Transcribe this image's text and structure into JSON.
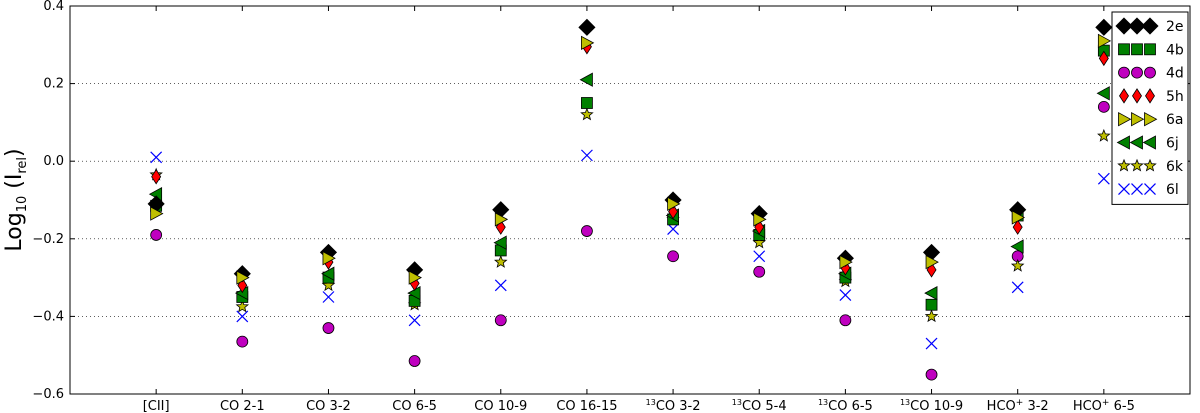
{
  "chart_data": {
    "type": "scatter",
    "categories": [
      "[CII]",
      "CO 2-1",
      "CO 3-2",
      "CO 6-5",
      "CO 10-9",
      "CO 16-15",
      "13CO 3-2",
      "13CO 5-4",
      "13CO 6-5",
      "13CO 10-9",
      "HCO+ 3-2",
      "HCO+ 6-5"
    ],
    "category_labels": [
      {
        "sup": "",
        "main": "[CII]",
        "suffix": ""
      },
      {
        "sup": "",
        "main": "CO 2-1",
        "suffix": ""
      },
      {
        "sup": "",
        "main": "CO 3-2",
        "suffix": ""
      },
      {
        "sup": "",
        "main": "CO 6-5",
        "suffix": ""
      },
      {
        "sup": "",
        "main": "CO 10-9",
        "suffix": ""
      },
      {
        "sup": "",
        "main": "CO 16-15",
        "suffix": ""
      },
      {
        "sup": "13",
        "main": "CO 3-2",
        "suffix": ""
      },
      {
        "sup": "13",
        "main": "CO 5-4",
        "suffix": ""
      },
      {
        "sup": "13",
        "main": "CO 6-5",
        "suffix": ""
      },
      {
        "sup": "13",
        "main": "CO 10-9",
        "suffix": ""
      },
      {
        "sup": "",
        "main": "HCO",
        "plus": "+",
        "suffix": " 3-2"
      },
      {
        "sup": "",
        "main": "HCO",
        "plus": "+",
        "suffix": " 6-5"
      }
    ],
    "ylabel": "Log",
    "ylabel_sub1": "10",
    "ylabel_paren_open": " (I",
    "ylabel_sub2": "rel",
    "ylabel_paren_close": ")",
    "ylim": [
      -0.6,
      0.4
    ],
    "yticks": [
      -0.6,
      -0.4,
      -0.2,
      0.0,
      0.2,
      0.4
    ],
    "ytick_labels": [
      "−0.6",
      "−0.4",
      "−0.2",
      "0.0",
      "0.2",
      "0.4"
    ],
    "grid": "horizontal dotted",
    "legend_position": "top-right",
    "series": [
      {
        "name": "2e",
        "marker": "diamond",
        "color": "#000000",
        "values": [
          -0.11,
          -0.29,
          -0.235,
          -0.28,
          -0.125,
          0.345,
          -0.1,
          -0.135,
          -0.25,
          -0.235,
          -0.125,
          0.345
        ]
      },
      {
        "name": "4b",
        "marker": "square",
        "color": "#008000",
        "values": [
          -0.115,
          -0.35,
          -0.3,
          -0.36,
          -0.23,
          0.15,
          -0.15,
          -0.19,
          -0.3,
          -0.37,
          -0.14,
          0.285
        ]
      },
      {
        "name": "4d",
        "marker": "circle",
        "color": "#bf00bf",
        "values": [
          -0.19,
          -0.465,
          -0.43,
          -0.515,
          -0.41,
          -0.18,
          -0.245,
          -0.285,
          -0.41,
          -0.55,
          -0.245,
          0.14
        ]
      },
      {
        "name": "5h",
        "marker": "thin-diamond",
        "color": "#ff0000",
        "values": [
          -0.04,
          -0.32,
          -0.26,
          -0.315,
          -0.17,
          0.295,
          -0.13,
          -0.17,
          -0.275,
          -0.28,
          -0.17,
          0.265
        ]
      },
      {
        "name": "6a",
        "marker": "triangle-right",
        "color": "#bfbf00",
        "values": [
          -0.135,
          -0.3,
          -0.25,
          -0.3,
          -0.15,
          0.305,
          -0.11,
          -0.15,
          -0.26,
          -0.26,
          -0.145,
          0.31
        ]
      },
      {
        "name": "6j",
        "marker": "triangle-left",
        "color": "#008000",
        "values": [
          -0.085,
          -0.34,
          -0.29,
          -0.34,
          -0.21,
          0.21,
          -0.14,
          -0.18,
          -0.29,
          -0.34,
          -0.22,
          0.175
        ]
      },
      {
        "name": "6k",
        "marker": "star",
        "color": "#bfbf00",
        "values": [
          -0.035,
          -0.375,
          -0.32,
          -0.37,
          -0.26,
          0.12,
          -0.15,
          -0.21,
          -0.31,
          -0.4,
          -0.27,
          0.065
        ]
      },
      {
        "name": "6l",
        "marker": "x",
        "color": "#0000ff",
        "values": [
          0.01,
          -0.4,
          -0.35,
          -0.41,
          -0.32,
          0.015,
          -0.175,
          -0.245,
          -0.345,
          -0.47,
          -0.325,
          -0.045
        ]
      }
    ]
  }
}
